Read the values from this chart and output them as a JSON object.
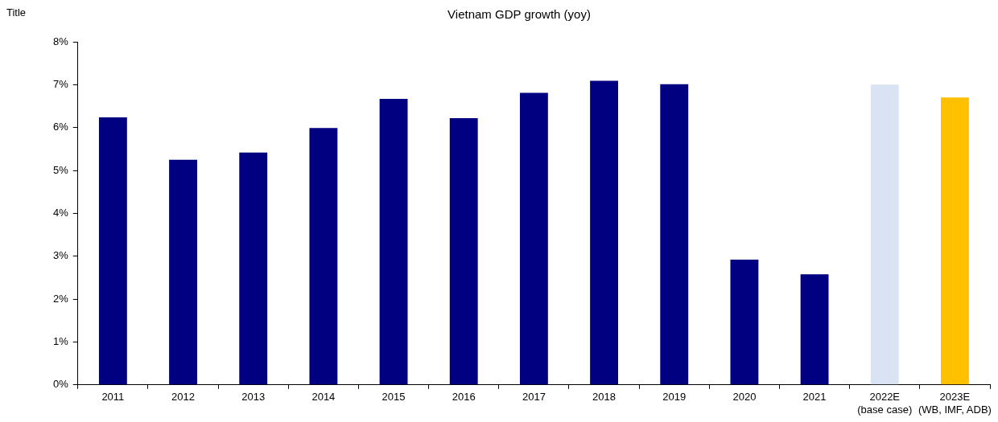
{
  "chart_data": {
    "type": "bar",
    "title": "Vietnam GDP growth (yoy)",
    "annotations": [
      "Title"
    ],
    "categories": [
      "2011",
      "2012",
      "2013",
      "2014",
      "2015",
      "2016",
      "2017",
      "2018",
      "2019",
      "2020",
      "2021",
      "2022E (base case)",
      "2023E (WB, IMF, ADB)"
    ],
    "values": [
      6.24,
      5.25,
      5.42,
      5.99,
      6.67,
      6.22,
      6.81,
      7.09,
      7.01,
      2.92,
      2.58,
      7.0,
      6.7
    ],
    "colors": [
      "#000080",
      "#000080",
      "#000080",
      "#000080",
      "#000080",
      "#000080",
      "#000080",
      "#000080",
      "#000080",
      "#000080",
      "#000080",
      "#dae3f3",
      "#ffc000"
    ],
    "ylim": [
      0,
      8
    ],
    "yticks": [
      {
        "value": 0,
        "label": "0%"
      },
      {
        "value": 1,
        "label": "1%"
      },
      {
        "value": 2,
        "label": "2%"
      },
      {
        "value": 3,
        "label": "3%"
      },
      {
        "value": 4,
        "label": "4%"
      },
      {
        "value": 5,
        "label": "5%"
      },
      {
        "value": 6,
        "label": "6%"
      },
      {
        "value": 7,
        "label": "7%"
      },
      {
        "value": 8,
        "label": "8%"
      }
    ],
    "grid": false,
    "legend": false
  }
}
